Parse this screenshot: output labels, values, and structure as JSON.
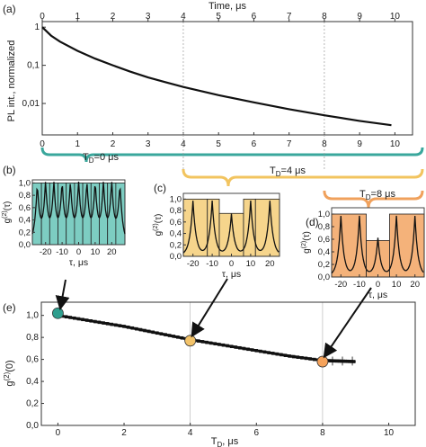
{
  "colors": {
    "teal": "#3aa79c",
    "teal_fill": "#7dcdc2",
    "yellow": "#f2c45f",
    "yellow_fill": "#f6d58c",
    "orange": "#f0a15c",
    "orange_fill": "#f4b27a",
    "dot_teal": "#2f9e8e",
    "dot_yellow": "#f3c36a",
    "dot_orange": "#f5a25a"
  },
  "chart_data": [
    {
      "panel": "(a)",
      "type": "line",
      "xlabel": "Time, μs",
      "ylabel": "PL int., normalized",
      "xlim": [
        0,
        10.5
      ],
      "ylim": [
        0.0015,
        1.4
      ],
      "yscale": "log",
      "x_ticks": [
        "0",
        "1",
        "2",
        "3",
        "4",
        "5",
        "6",
        "7",
        "8",
        "9",
        "10"
      ],
      "y_ticks": [
        "1",
        "0,1",
        "0,01"
      ],
      "bottom_ticks": [
        "0",
        "1",
        "2",
        "3",
        "4",
        "5",
        "6",
        "7",
        "8",
        "9",
        "10"
      ],
      "series": [
        {
          "x": [
            0,
            0.25,
            0.5,
            1,
            1.5,
            2,
            2.5,
            3,
            3.5,
            4,
            5,
            6,
            7,
            8,
            9,
            9.9
          ],
          "y": [
            1.0,
            0.6,
            0.42,
            0.24,
            0.15,
            0.1,
            0.068,
            0.048,
            0.036,
            0.027,
            0.0165,
            0.0107,
            0.0071,
            0.0049,
            0.0035,
            0.0027
          ]
        }
      ]
    },
    {
      "panel": "(b)",
      "type": "line",
      "xlabel": "τ, μs",
      "ylabel": "g(2)(τ)",
      "annotation": "T",
      "annotation_sub": "D",
      "annotation_rest": "=0 μs",
      "xlim": [
        -28,
        28
      ],
      "ylim": [
        0,
        1.05
      ],
      "x_ticks": [
        "-20",
        "-10",
        "0",
        "10",
        "20"
      ],
      "y_ticks": [
        "0,0",
        "0,2",
        "0,4",
        "0,6",
        "0,8",
        "1,0"
      ],
      "bars": {
        "edges": [
          -28,
          -22.5,
          -17.5,
          -12.5,
          -7.5,
          -2.5,
          2.5,
          7.5,
          12.5,
          17.5,
          22.5,
          28
        ],
        "values": [
          1.0,
          1.0,
          1.0,
          1.0,
          1.0,
          1.0,
          1.0,
          1.0,
          1.0,
          1.0,
          1.0
        ]
      },
      "peak_centers": [
        -25,
        -20,
        -15,
        -10,
        -5,
        0,
        5,
        10,
        15,
        20,
        25
      ],
      "peak_heights": [
        0.95,
        0.95,
        0.95,
        0.95,
        0.95,
        0.95,
        0.95,
        0.95,
        0.95,
        0.95,
        0.95
      ]
    },
    {
      "panel": "(c)",
      "type": "line",
      "xlabel": "τ, μs",
      "ylabel": "g(2)(τ)",
      "annotation": "T",
      "annotation_sub": "D",
      "annotation_rest": "=4 μs",
      "xlim": [
        -25,
        25
      ],
      "ylim": [
        0,
        1.1
      ],
      "x_ticks": [
        "-20",
        "-10",
        "0",
        "10",
        "20"
      ],
      "y_ticks": [
        "0,0",
        "0,2",
        "0,4",
        "0,6",
        "0,8",
        "1,0"
      ],
      "bars": {
        "edges": [
          -25,
          -12.5,
          -6.3,
          6.3,
          12.5,
          25
        ],
        "values": [
          1.0,
          1.0,
          0.75,
          1.0,
          1.0
        ]
      },
      "peak_centers": [
        -20,
        -10,
        0,
        10,
        20
      ],
      "peak_heights": [
        0.95,
        0.95,
        0.72,
        0.95,
        0.95
      ]
    },
    {
      "panel": "(d)",
      "type": "line",
      "xlabel": "τ, μs",
      "ylabel": "g(2)(τ)",
      "annotation": "T",
      "annotation_sub": "D",
      "annotation_rest": "=8 μs",
      "xlim": [
        -25,
        25
      ],
      "ylim": [
        0,
        1.1
      ],
      "x_ticks": [
        "-20",
        "-10",
        "0",
        "10",
        "20"
      ],
      "y_ticks": [
        "0,0",
        "0,2",
        "0,4",
        "0,6",
        "0,8",
        "1,0"
      ],
      "bars": {
        "edges": [
          -25,
          -6.3,
          6.3,
          25
        ],
        "values": [
          1.0,
          0.58,
          1.0
        ]
      },
      "peak_centers": [
        -20,
        -10,
        0,
        10,
        20
      ],
      "peak_heights": [
        0.95,
        0.95,
        0.6,
        0.95,
        0.95
      ]
    },
    {
      "panel": "(e)",
      "type": "scatter",
      "xlabel": "T",
      "xlabel_sub": "D",
      "xlabel_rest": ", μs",
      "ylabel": "g(2)(0)",
      "xlim": [
        -0.5,
        10.8
      ],
      "ylim": [
        0,
        1.12
      ],
      "x_ticks": [
        "0",
        "2",
        "4",
        "6",
        "8",
        "10"
      ],
      "y_ticks": [
        "0,0",
        "0,2",
        "0,4",
        "0,6",
        "0,8",
        "1,0"
      ],
      "series": [
        {
          "x": [
            0,
            1,
            2,
            3,
            4,
            5,
            6,
            7,
            8,
            8.5,
            9
          ],
          "y": [
            1.0,
            0.95,
            0.9,
            0.84,
            0.78,
            0.73,
            0.68,
            0.63,
            0.59,
            0.585,
            0.58
          ]
        }
      ],
      "highlight_points": [
        {
          "x": 0,
          "y": 1.02
        },
        {
          "x": 4,
          "y": 0.77
        },
        {
          "x": 8,
          "y": 0.58
        }
      ]
    }
  ]
}
